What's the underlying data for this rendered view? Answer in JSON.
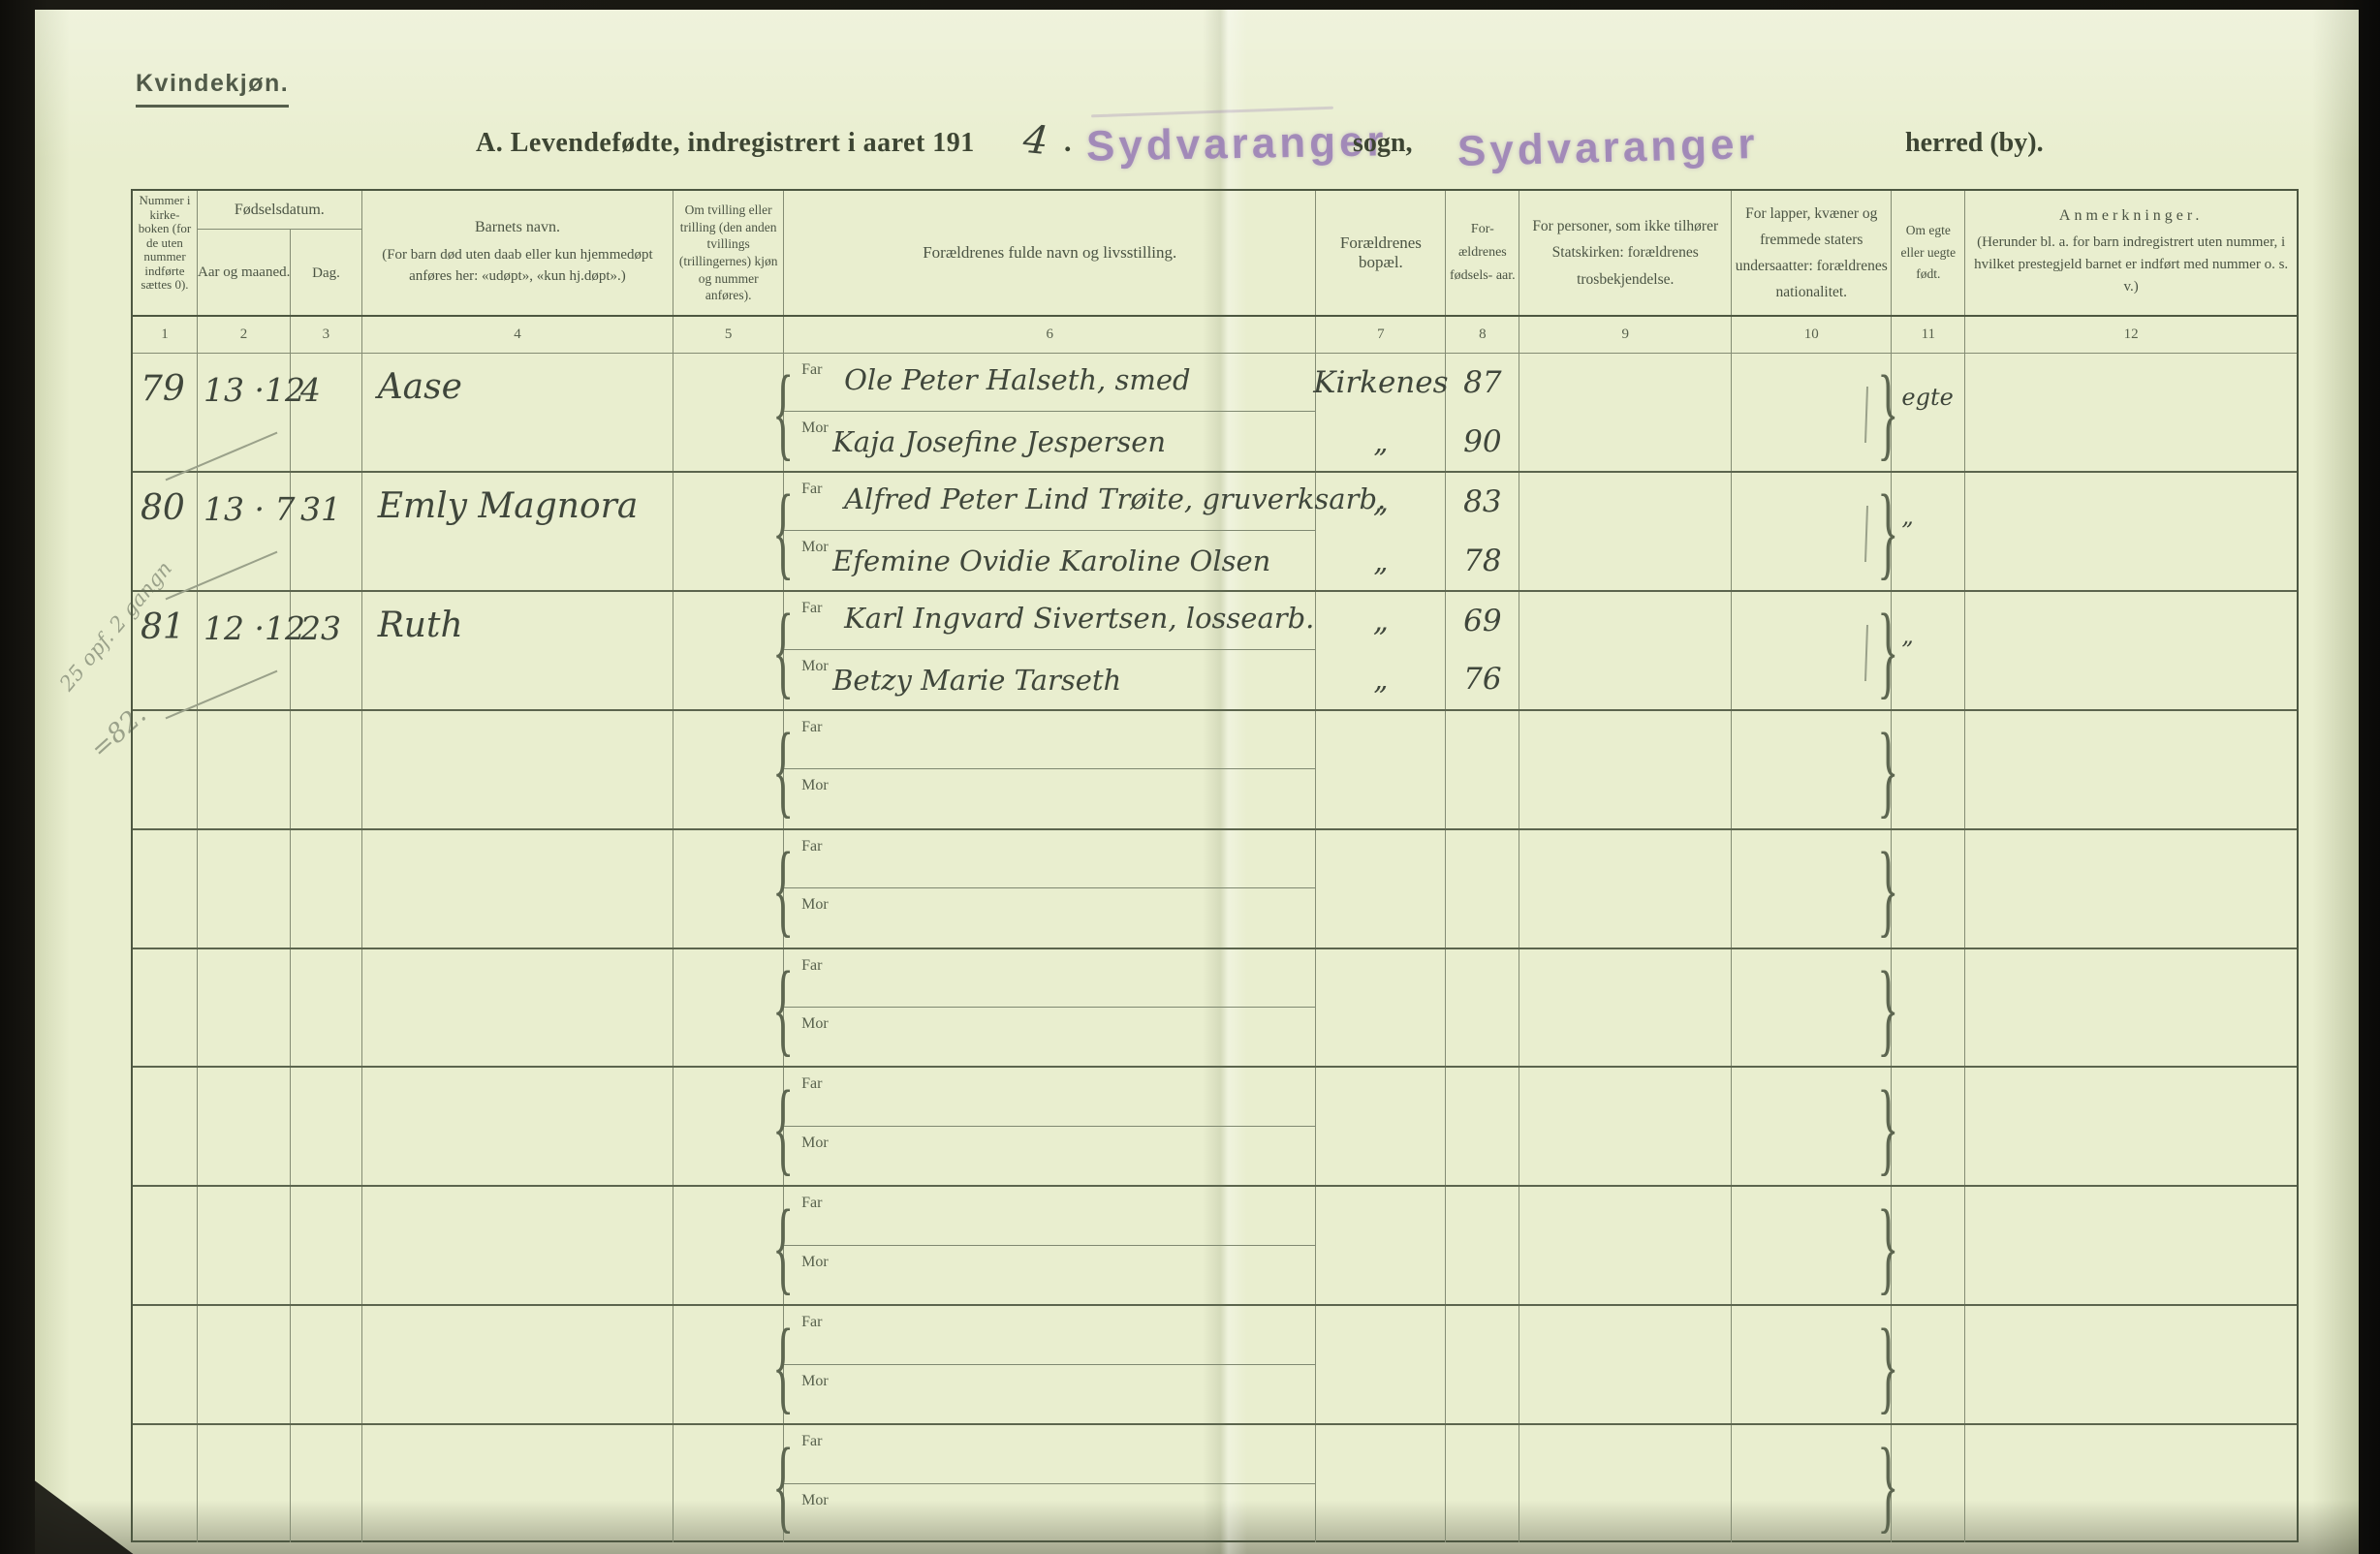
{
  "frame": {
    "section_label": "Kvindekjøn."
  },
  "title": {
    "prefix": "A.  Levendefødte, indregistrert i aaret 191",
    "year_handwritten": "4",
    "period": ".",
    "stamp_sogn": "Sydvaranger",
    "sogn_label": "sogn,",
    "stamp_herred": "Sydvaranger",
    "herred_label": "herred (by)."
  },
  "table": {
    "headers": {
      "c1": "Nummer i kirke- boken (for de uten nummer indførte sættes 0).",
      "c23_group": "Fødselsdatum.",
      "c2": "Aar og maaned.",
      "c3": "Dag.",
      "c4_main": "Barnets navn.",
      "c4_sub": "(For barn død uten daab eller kun hjemmedøpt anføres her: «udøpt», «kun hj.døpt».)",
      "c5": "Om tvilling eller trilling (den anden tvillings (trillingernes) kjøn og nummer anføres).",
      "c6": "Forældrenes fulde navn og livsstilling.",
      "c7": "Forældrenes bopæl.",
      "c8": "For- ældrenes fødsels- aar.",
      "c9": "For personer, som ikke tilhører Statskirken: forældrenes trosbekjendelse.",
      "c10": "For lapper, kvæner og fremmede staters undersaatter: forældrenes nationalitet.",
      "c11": "Om egte eller uegte født.",
      "c12_main": "Anmerkninger.",
      "c12_sub": "(Herunder bl. a. for barn indregistrert uten nummer, i hvilket prestegjeld barnet er indført med nummer o. s. v.)"
    },
    "column_numbers": [
      "1",
      "2",
      "3",
      "4",
      "5",
      "6",
      "7",
      "8",
      "9",
      "10",
      "11",
      "12"
    ],
    "far_label": "Far",
    "mor_label": "Mor",
    "rows": [
      {
        "nr": "79",
        "date": "13 ·12",
        "day": "4",
        "name": "Aase",
        "far": "Ole Peter Halseth, smed",
        "mor": "Kaja Josefine Jespersen",
        "bopel_far": "Kirkenes",
        "bopel_mor": "„",
        "aar_far": "87",
        "aar_mor": "90",
        "egte": "egte"
      },
      {
        "nr": "80",
        "date": "13 · 7",
        "day": "31",
        "name": "Emly Magnora",
        "far": "Alfred Peter Lind Trøite, gruverksarb.",
        "mor": "Efemine Ovidie Karoline Olsen",
        "bopel_far": "„",
        "bopel_mor": "„",
        "aar_far": "83",
        "aar_mor": "78",
        "egte": "„"
      },
      {
        "nr": "81",
        "date": "12 ·12",
        "day": "23",
        "name": "Ruth",
        "far": "Karl Ingvard Sivertsen, lossearb.",
        "mor": "Betzy Marie Tarseth",
        "bopel_far": "„",
        "bopel_mor": "„",
        "aar_far": "69",
        "aar_mor": "76",
        "egte": "„"
      },
      {
        "nr": "",
        "date": "",
        "day": "",
        "name": "",
        "far": "",
        "mor": "",
        "bopel_far": "",
        "bopel_mor": "",
        "aar_far": "",
        "aar_mor": "",
        "egte": ""
      },
      {
        "nr": "",
        "date": "",
        "day": "",
        "name": "",
        "far": "",
        "mor": "",
        "bopel_far": "",
        "bopel_mor": "",
        "aar_far": "",
        "aar_mor": "",
        "egte": ""
      },
      {
        "nr": "",
        "date": "",
        "day": "",
        "name": "",
        "far": "",
        "mor": "",
        "bopel_far": "",
        "bopel_mor": "",
        "aar_far": "",
        "aar_mor": "",
        "egte": ""
      },
      {
        "nr": "",
        "date": "",
        "day": "",
        "name": "",
        "far": "",
        "mor": "",
        "bopel_far": "",
        "bopel_mor": "",
        "aar_far": "",
        "aar_mor": "",
        "egte": ""
      },
      {
        "nr": "",
        "date": "",
        "day": "",
        "name": "",
        "far": "",
        "mor": "",
        "bopel_far": "",
        "bopel_mor": "",
        "aar_far": "",
        "aar_mor": "",
        "egte": ""
      },
      {
        "nr": "",
        "date": "",
        "day": "",
        "name": "",
        "far": "",
        "mor": "",
        "bopel_far": "",
        "bopel_mor": "",
        "aar_far": "",
        "aar_mor": "",
        "egte": ""
      },
      {
        "nr": "",
        "date": "",
        "day": "",
        "name": "",
        "far": "",
        "mor": "",
        "bopel_far": "",
        "bopel_mor": "",
        "aar_far": "",
        "aar_mor": "",
        "egte": ""
      }
    ]
  },
  "margin_notes": {
    "note1": "25 opf. 2 gangn",
    "note2": "=82."
  },
  "colors": {
    "paper": "#e9eecf",
    "ink_print": "#4b5444",
    "ink_hand": "#3f463b",
    "pencil": "#9aa18a",
    "stamp": "#977bb5"
  }
}
